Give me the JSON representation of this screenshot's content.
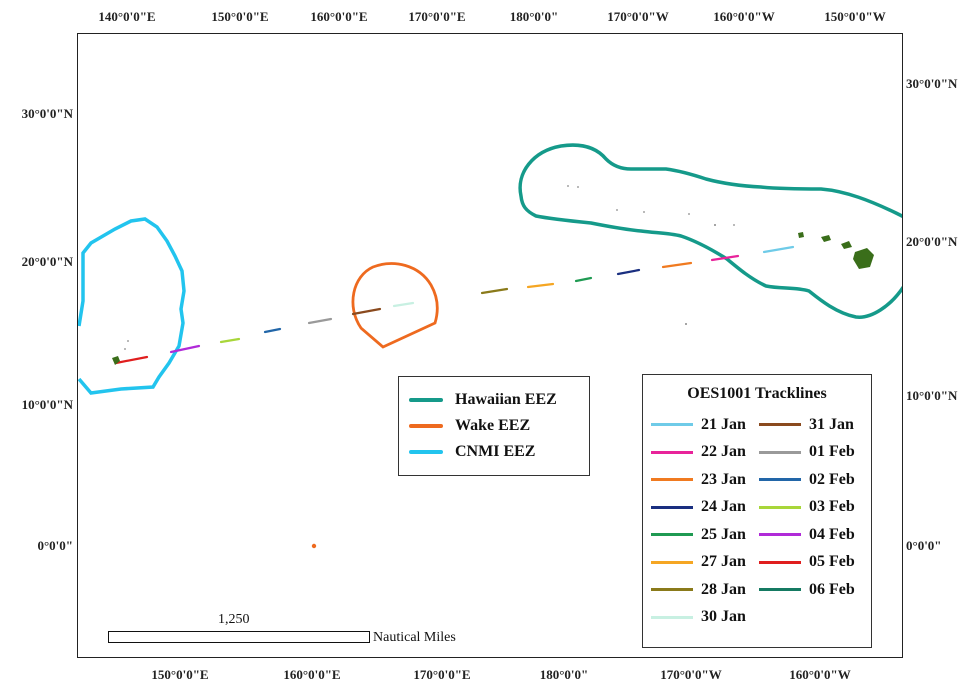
{
  "axes": {
    "top_labels": [
      "140°0'0\"E",
      "150°0'0\"E",
      "160°0'0\"E",
      "170°0'0\"E",
      "180°0'0\"",
      "170°0'0\"W",
      "160°0'0\"W",
      "150°0'0\"W"
    ],
    "bottom_labels": [
      "150°0'0\"E",
      "160°0'0\"E",
      "170°0'0\"E",
      "180°0'0\"",
      "170°0'0\"W",
      "160°0'0\"W"
    ],
    "left_labels": [
      "30°0'0\"N",
      "20°0'0\"N",
      "10°0'0\"N",
      "0°0'0\""
    ],
    "right_labels": [
      "30°0'0\"N",
      "20°0'0\"N",
      "10°0'0\"N",
      "0°0'0\""
    ]
  },
  "eez_legend": {
    "items": [
      {
        "label": "Hawaiian EEZ",
        "color": "#159a8a"
      },
      {
        "label": "Wake EEZ",
        "color": "#ee6a1f"
      },
      {
        "label": "CNMI EEZ",
        "color": "#22c4ee"
      }
    ]
  },
  "track_legend": {
    "title": "OES1001 Tracklines",
    "items": [
      {
        "label": "21 Jan",
        "color": "#6fcbe8"
      },
      {
        "label": "31 Jan",
        "color": "#8a4a1e"
      },
      {
        "label": "22 Jan",
        "color": "#e8239a"
      },
      {
        "label": "01 Feb",
        "color": "#9a9a9a"
      },
      {
        "label": "23 Jan",
        "color": "#f07a20"
      },
      {
        "label": "02 Feb",
        "color": "#2266a8"
      },
      {
        "label": "24 Jan",
        "color": "#1a2f80"
      },
      {
        "label": "03 Feb",
        "color": "#a8d63a"
      },
      {
        "label": "25 Jan",
        "color": "#1f9a52"
      },
      {
        "label": "04 Feb",
        "color": "#b02ad8"
      },
      {
        "label": "27 Jan",
        "color": "#f5a623"
      },
      {
        "label": "05 Feb",
        "color": "#e01e1e"
      },
      {
        "label": "28 Jan",
        "color": "#8a7a1a"
      },
      {
        "label": "06 Feb",
        "color": "#157a62"
      },
      {
        "label": "30 Jan",
        "color": "#c8f0e2"
      }
    ]
  },
  "scale": {
    "value": "1,250",
    "unit": "Nautical Miles"
  },
  "land_color": "#3a6e1a"
}
